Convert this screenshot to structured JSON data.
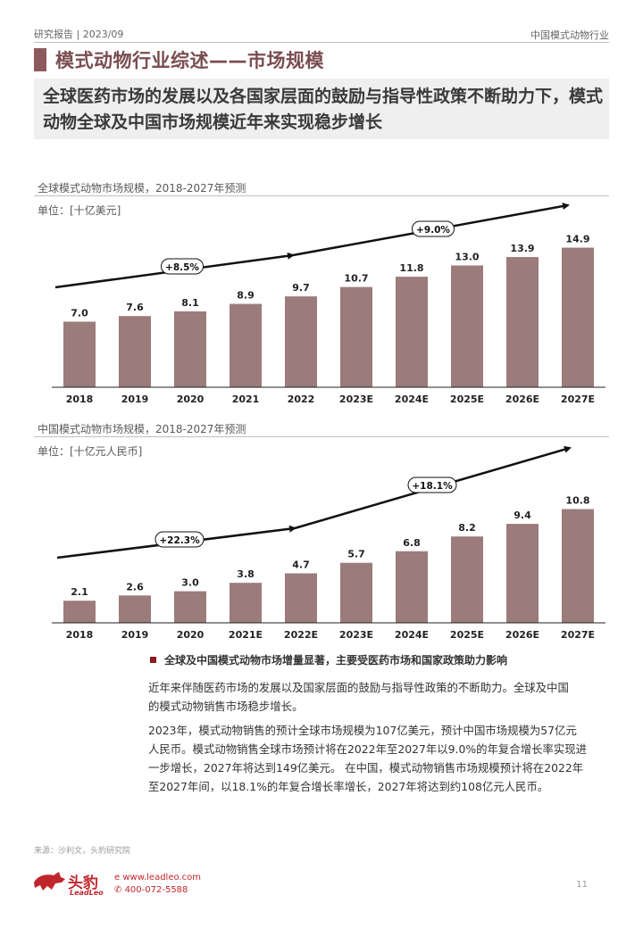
{
  "header": {
    "report_tag": "研究报告 | 2023/09",
    "industry": "中国模式动物行业"
  },
  "section_title": "模式动物行业综述——市场规模",
  "headline": "全球医药市场的发展以及各国家层面的鼓励与指导性政策不断助力下，模式动物全球及中国市场规模近年来实现稳步增长",
  "charts_meta": [
    {
      "title": "全球模式动物市场规模，2018-2027年预测",
      "unit": "单位：[十亿美元]"
    },
    {
      "title": "中国模式动物市场规模，2018-2027年预测",
      "unit": "单位：[十亿元人民币]"
    }
  ],
  "chart_data": [
    {
      "type": "bar",
      "title": "全球模式动物市场规模，2018-2027年预测",
      "ylabel": "单位：[十亿美元]",
      "categories": [
        "2018",
        "2019",
        "2020",
        "2021",
        "2022",
        "2023E",
        "2024E",
        "2025E",
        "2026E",
        "2027E"
      ],
      "values": [
        7.0,
        7.6,
        8.1,
        8.9,
        9.7,
        10.7,
        11.8,
        13.0,
        13.9,
        14.9
      ],
      "value_labels": [
        "7.0",
        "7.6",
        "8.1",
        "8.9",
        "9.7",
        "10.7",
        "11.8",
        "13.0",
        "13.9",
        "14.9"
      ],
      "ylim": [
        0,
        16
      ],
      "bar_color": "#9c7b7b",
      "annotations": [
        "+8.5%",
        "+9.0%"
      ]
    },
    {
      "type": "bar",
      "title": "中国模式动物市场规模，2018-2027年预测",
      "ylabel": "单位：[十亿元人民币]",
      "categories": [
        "2018",
        "2019",
        "2020",
        "2021E",
        "2022E",
        "2023E",
        "2024E",
        "2025E",
        "2026E",
        "2027E"
      ],
      "values": [
        2.1,
        2.6,
        3.0,
        3.8,
        4.7,
        5.7,
        6.8,
        8.2,
        9.4,
        10.8
      ],
      "value_labels": [
        "2.1",
        "2.6",
        "3.0",
        "3.8",
        "4.7",
        "5.7",
        "6.8",
        "8.2",
        "9.4",
        "10.8"
      ],
      "ylim": [
        0,
        16
      ],
      "bar_color": "#9c7b7b",
      "annotations": [
        "+22.3%",
        "+18.1%"
      ]
    }
  ],
  "bullet_heading": "全球及中国模式动物市场增量显著，主要受医药市场和国家政策助力影响",
  "paragraphs": [
    [
      "近年来伴随医药市场的发展以及国家层面的鼓励与指导性政策的不断助力。全球及中国",
      "的模式动物销售市场稳步增长。"
    ],
    [
      "2023年，模式动物销售的预计全球市场规模为107亿美元，预计中国市场规模为57亿元",
      "人民币。模式动物销售全球市场预计将在2022年至2027年以9.0%的年复合增长率实现进",
      "一步增长，2027年将达到149亿美元。 在中国，模式动物销售市场规模预计将在2022年",
      "至2027年间，以18.1%的年复合增长率增长，2027年将达到约108亿元人民币。"
    ]
  ],
  "source": "来源：沙利文，头豹研究院",
  "footer": {
    "logo_cn": "头豹",
    "logo_en": "LeadLeo",
    "url": "www.leadleo.com",
    "phone": "400-072-5588",
    "page_number": "11"
  },
  "colors": {
    "accent": "#8c5a5d",
    "bar": "#9c7b7b",
    "brand_red": "#c0262d"
  }
}
